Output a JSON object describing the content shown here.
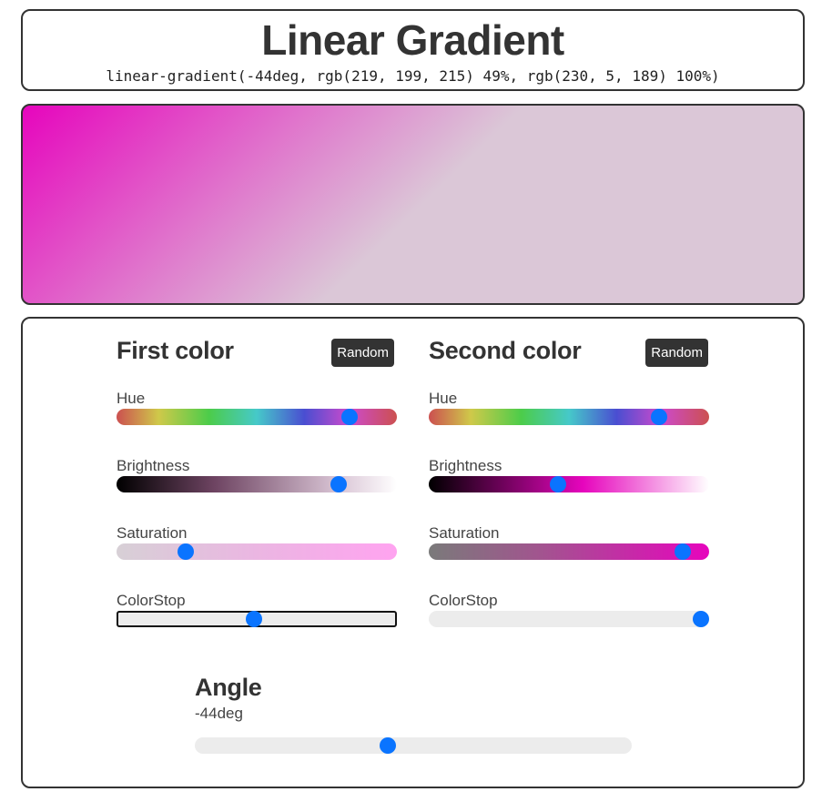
{
  "header": {
    "title": "Linear Gradient",
    "css_output": "linear-gradient(-44deg, rgb(219, 199, 215) 49%, rgb(230, 5, 189) 100%)"
  },
  "gradient": {
    "angle_deg": -44,
    "first_color": "#dbc7d7",
    "first_stop_percent": 49,
    "second_color": "#e605bd",
    "second_stop_percent": 100
  },
  "first_color": {
    "title": "First color",
    "random_label": "Random",
    "hue_label": "Hue",
    "hue_value": 0.85,
    "brightness_label": "Brightness",
    "brightness_value": 0.81,
    "saturation_label": "Saturation",
    "saturation_value": 0.23,
    "colorstop_label": "ColorStop",
    "colorstop_value": 0.49
  },
  "second_color": {
    "title": "Second color",
    "random_label": "Random",
    "hue_label": "Hue",
    "hue_value": 0.84,
    "brightness_label": "Brightness",
    "brightness_value": 0.46,
    "saturation_label": "Saturation",
    "saturation_value": 0.93,
    "colorstop_label": "ColorStop",
    "colorstop_value": 1.0
  },
  "angle": {
    "title": "Angle",
    "value_label": "-44deg",
    "value": 0.44
  },
  "colors": {
    "thumb": "#0a74ff",
    "panel_border": "#333333",
    "button_bg": "#333333"
  }
}
